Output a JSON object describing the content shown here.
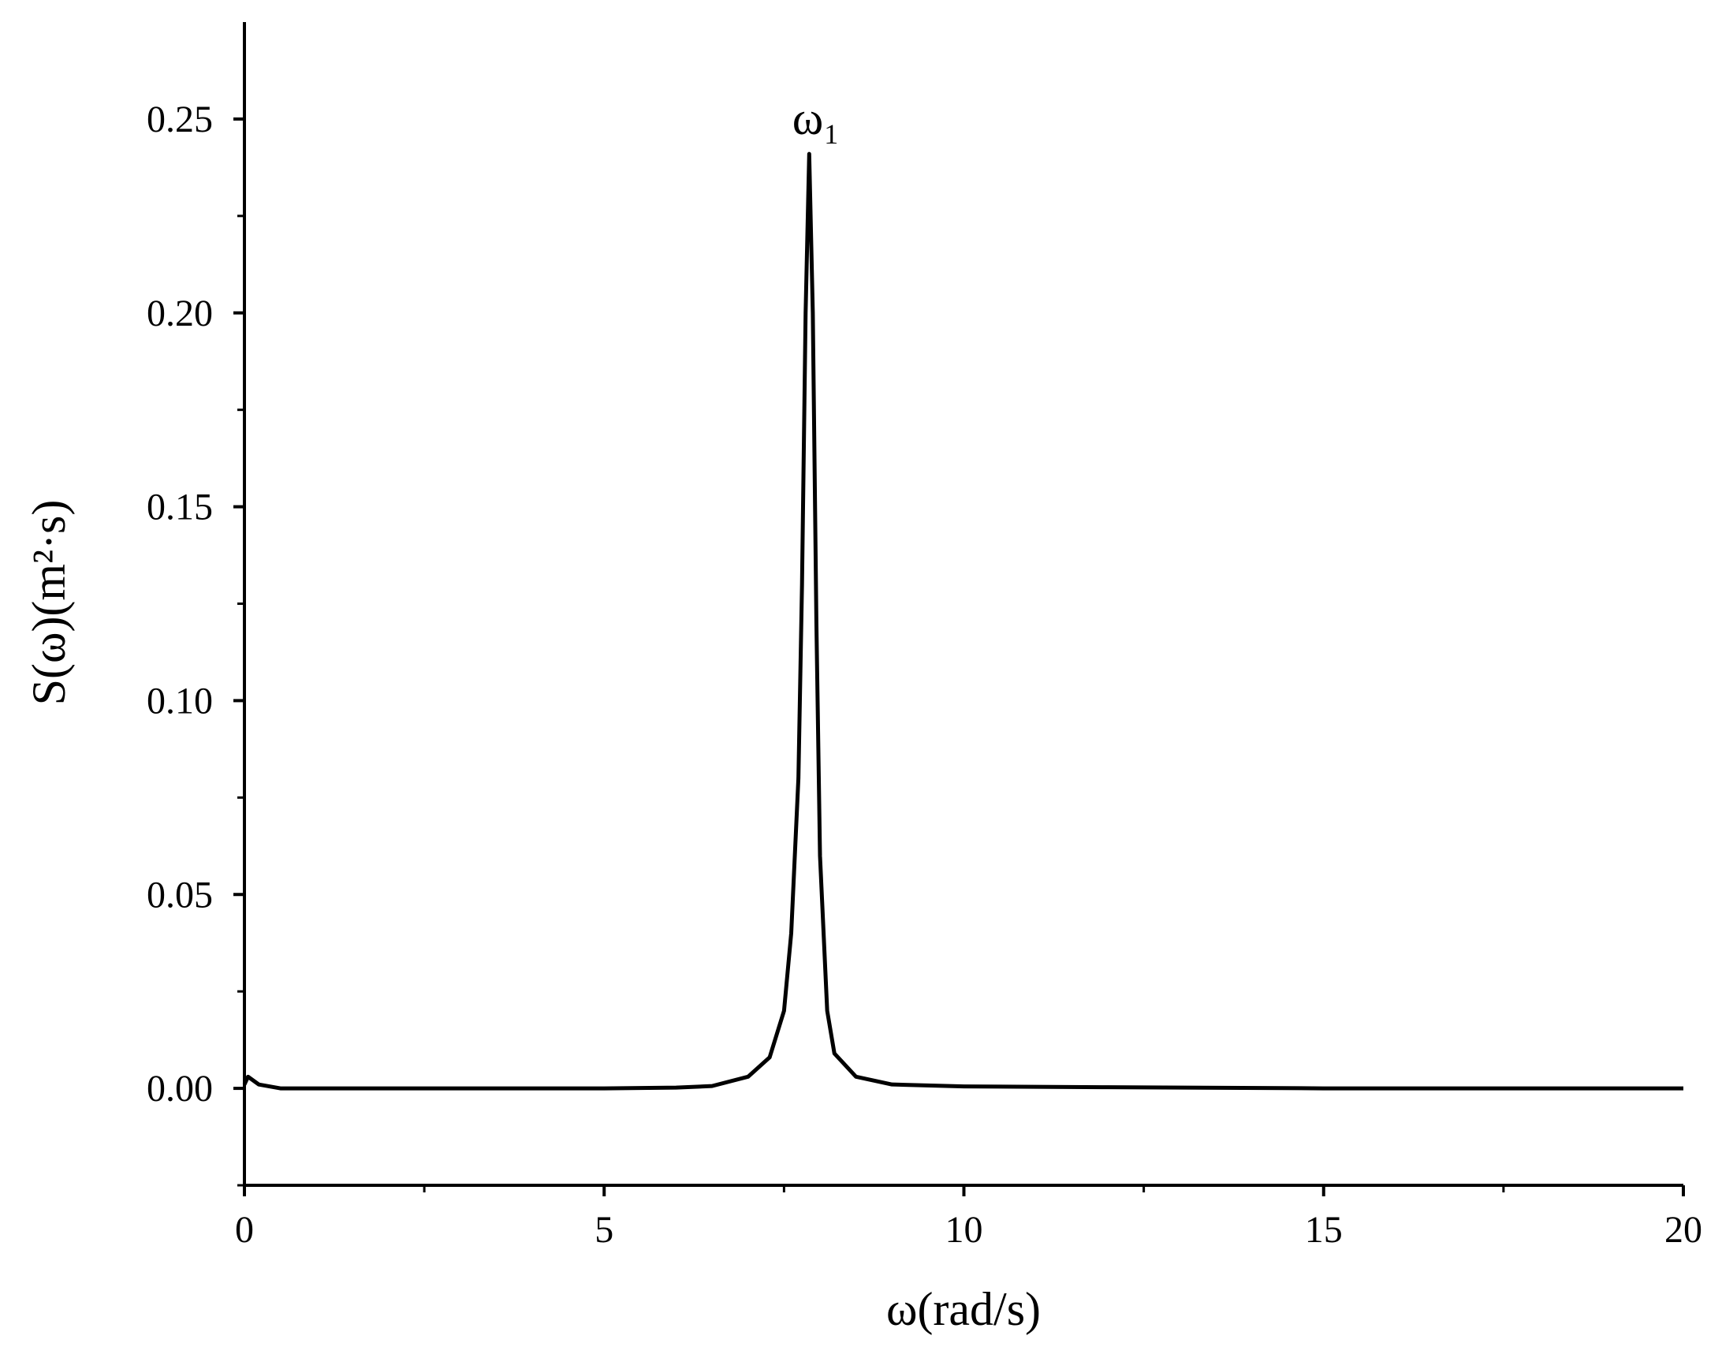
{
  "chart_data": {
    "type": "line",
    "xlabel": "ω(rad/s)",
    "ylabel": "S(ω)(m²·s)",
    "annotation": "ω₁",
    "color": "#000000",
    "x": [
      0,
      0.05,
      0.2,
      0.5,
      1,
      2,
      3,
      4,
      5,
      6,
      6.5,
      7,
      7.3,
      7.5,
      7.6,
      7.7,
      7.75,
      7.8,
      7.85,
      7.9,
      7.95,
      8,
      8.1,
      8.2,
      8.5,
      9,
      10,
      12,
      15,
      20
    ],
    "series": [
      {
        "values": [
          0.001,
          0.003,
          0.001,
          0,
          0,
          0,
          0,
          0,
          0,
          0.0002,
          0.0006,
          0.003,
          0.008,
          0.02,
          0.04,
          0.08,
          0.13,
          0.2,
          0.241,
          0.2,
          0.12,
          0.06,
          0.02,
          0.009,
          0.003,
          0.001,
          0.0005,
          0.0003,
          0,
          0
        ]
      }
    ],
    "xlim": [
      0,
      20
    ],
    "xticks": [
      0,
      5,
      10,
      15,
      20
    ],
    "xminorticks": [
      2.5,
      7.5,
      12.5,
      17.5
    ],
    "ylim": [
      -0.025,
      0.275
    ],
    "yticks": [
      {
        "value": 0,
        "label": "0.00"
      },
      {
        "value": 0.05,
        "label": "0.05"
      },
      {
        "value": 0.1,
        "label": "0.10"
      },
      {
        "value": 0.15,
        "label": "0.15"
      },
      {
        "value": 0.2,
        "label": "0.20"
      },
      {
        "value": 0.25,
        "label": "0.25"
      }
    ],
    "yminorticks": [
      -0.025,
      0.025,
      0.075,
      0.125,
      0.175,
      0.225
    ]
  }
}
